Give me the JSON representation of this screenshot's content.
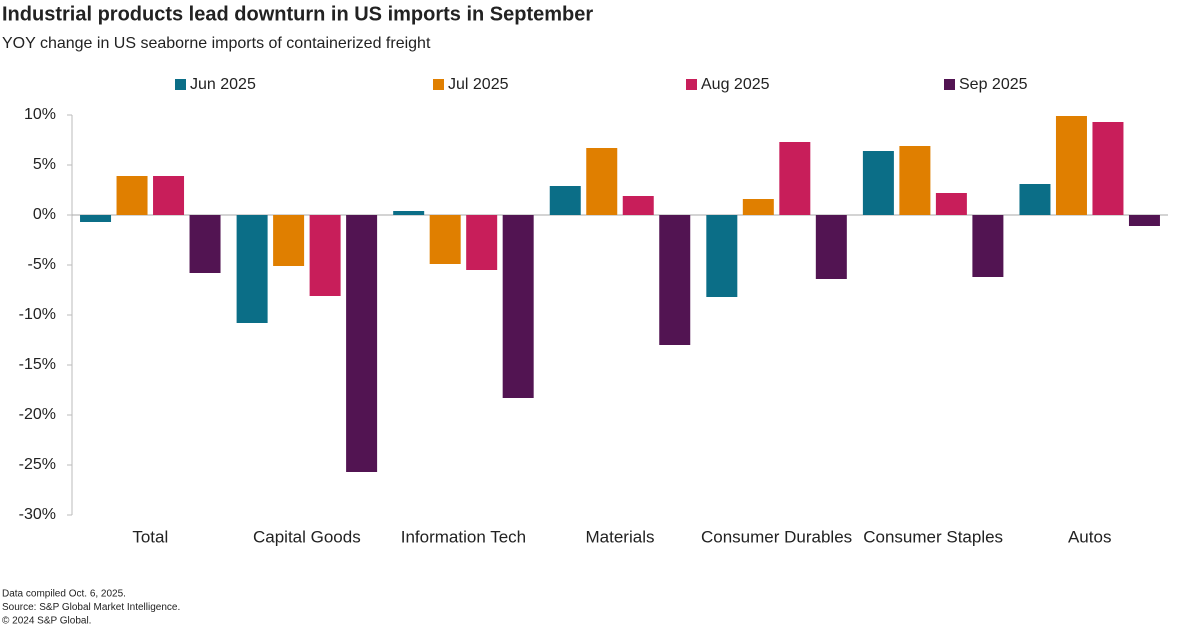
{
  "chart_data": {
    "type": "bar",
    "title": "Industrial products lead downturn in US imports in September",
    "subtitle": "YOY change in US seaborne imports of containerized freight",
    "categories": [
      "Total",
      "Capital Goods",
      "Information Tech",
      "Materials",
      "Consumer Durables",
      "Consumer Staples",
      "Autos"
    ],
    "series": [
      {
        "name": "Jun 2025",
        "color": "#0b6e87",
        "values": [
          -0.7,
          -10.8,
          0.4,
          2.9,
          -8.2,
          6.4,
          3.1
        ]
      },
      {
        "name": "Jul 2025",
        "color": "#e07f00",
        "values": [
          3.9,
          -5.1,
          -4.9,
          6.7,
          1.6,
          6.9,
          9.9
        ]
      },
      {
        "name": "Aug 2025",
        "color": "#c81e5a",
        "values": [
          3.9,
          -8.1,
          -5.5,
          1.9,
          7.3,
          2.2,
          9.3
        ]
      },
      {
        "name": "Sep 2025",
        "color": "#521452",
        "values": [
          -5.8,
          -25.7,
          -18.3,
          -13.0,
          -6.4,
          -6.2,
          -1.1
        ]
      }
    ],
    "ylim": [
      -30,
      10
    ],
    "yticks": [
      {
        "value": 10,
        "label": "10%"
      },
      {
        "value": 5,
        "label": "5%"
      },
      {
        "value": 0,
        "label": "0%"
      },
      {
        "value": -5,
        "label": "-5%"
      },
      {
        "value": -10,
        "label": "-10%"
      },
      {
        "value": -15,
        "label": "-15%"
      },
      {
        "value": -20,
        "label": "-20%"
      },
      {
        "value": -25,
        "label": "-25%"
      },
      {
        "value": -30,
        "label": "-30%"
      }
    ],
    "grid": false,
    "legend": "top",
    "footnotes": [
      "Data compiled Oct. 6, 2025.",
      "Source: S&P Global Market Intelligence.",
      "© 2024 S&P Global."
    ]
  }
}
